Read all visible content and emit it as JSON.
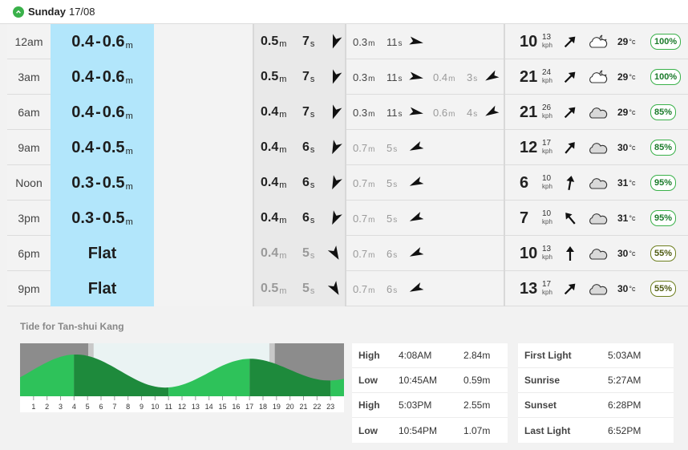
{
  "day": {
    "label": "Sunday",
    "date": "17/08"
  },
  "rows": [
    {
      "time": "12am",
      "surf_min": "0.4",
      "surf_max": "0.6",
      "surf_unit": "m",
      "flat": false,
      "swell_h": "0.5",
      "swell_p": "7",
      "swell_dir": 200,
      "swell_dim": false,
      "sec1_h": "0.3",
      "sec1_p": "11",
      "sec1_dir": 100,
      "sec1_dim": false,
      "sec2_h": "",
      "sec2_p": "",
      "sec2_dir": null,
      "wind": "10",
      "gust": "13",
      "wind_unit": "kph",
      "wind_dir": 225,
      "weather": "night-cloud",
      "temp": "29",
      "temp_unit": "°c",
      "prob": "100%",
      "prob_style": "green"
    },
    {
      "time": "3am",
      "surf_min": "0.4",
      "surf_max": "0.6",
      "surf_unit": "m",
      "flat": false,
      "swell_h": "0.5",
      "swell_p": "7",
      "swell_dir": 200,
      "swell_dim": false,
      "sec1_h": "0.3",
      "sec1_p": "11",
      "sec1_dir": 100,
      "sec1_dim": false,
      "sec2_h": "0.4",
      "sec2_p": "3",
      "sec2_dir": 240,
      "wind": "21",
      "gust": "24",
      "wind_unit": "kph",
      "wind_dir": 225,
      "weather": "night-cloud",
      "temp": "29",
      "temp_unit": "°c",
      "prob": "100%",
      "prob_style": "green"
    },
    {
      "time": "6am",
      "surf_min": "0.4",
      "surf_max": "0.6",
      "surf_unit": "m",
      "flat": false,
      "swell_h": "0.4",
      "swell_p": "7",
      "swell_dir": 200,
      "swell_dim": false,
      "sec1_h": "0.3",
      "sec1_p": "11",
      "sec1_dir": 100,
      "sec1_dim": false,
      "sec2_h": "0.6",
      "sec2_p": "4",
      "sec2_dir": 240,
      "wind": "21",
      "gust": "26",
      "wind_unit": "kph",
      "wind_dir": 225,
      "weather": "cloud",
      "temp": "29",
      "temp_unit": "°c",
      "prob": "85%",
      "prob_style": "green"
    },
    {
      "time": "9am",
      "surf_min": "0.4",
      "surf_max": "0.5",
      "surf_unit": "m",
      "flat": false,
      "swell_h": "0.4",
      "swell_p": "6",
      "swell_dir": 205,
      "swell_dim": false,
      "sec1_h": "0.7",
      "sec1_p": "5",
      "sec1_dir": 245,
      "sec1_dim": true,
      "sec2_h": "",
      "sec2_p": "",
      "sec2_dir": null,
      "wind": "12",
      "gust": "17",
      "wind_unit": "kph",
      "wind_dir": 220,
      "weather": "cloud",
      "temp": "30",
      "temp_unit": "°c",
      "prob": "85%",
      "prob_style": "green"
    },
    {
      "time": "Noon",
      "surf_min": "0.3",
      "surf_max": "0.5",
      "surf_unit": "m",
      "flat": false,
      "swell_h": "0.4",
      "swell_p": "6",
      "swell_dir": 205,
      "swell_dim": false,
      "sec1_h": "0.7",
      "sec1_p": "5",
      "sec1_dir": 245,
      "sec1_dim": true,
      "sec2_h": "",
      "sec2_p": "",
      "sec2_dir": null,
      "wind": "6",
      "gust": "10",
      "wind_unit": "kph",
      "wind_dir": 190,
      "weather": "cloud",
      "temp": "31",
      "temp_unit": "°c",
      "prob": "95%",
      "prob_style": "green"
    },
    {
      "time": "3pm",
      "surf_min": "0.3",
      "surf_max": "0.5",
      "surf_unit": "m",
      "flat": false,
      "swell_h": "0.4",
      "swell_p": "6",
      "swell_dir": 205,
      "swell_dim": false,
      "sec1_h": "0.7",
      "sec1_p": "5",
      "sec1_dir": 245,
      "sec1_dim": true,
      "sec2_h": "",
      "sec2_p": "",
      "sec2_dir": null,
      "wind": "7",
      "gust": "10",
      "wind_unit": "kph",
      "wind_dir": 140,
      "weather": "cloud",
      "temp": "31",
      "temp_unit": "°c",
      "prob": "95%",
      "prob_style": "green"
    },
    {
      "time": "6pm",
      "surf_min": "",
      "surf_max": "",
      "surf_unit": "",
      "flat": true,
      "flat_label": "Flat",
      "swell_h": "0.4",
      "swell_p": "5",
      "swell_dir": 150,
      "swell_dim": true,
      "sec1_h": "0.7",
      "sec1_p": "6",
      "sec1_dir": 245,
      "sec1_dim": true,
      "sec2_h": "",
      "sec2_p": "",
      "sec2_dir": null,
      "wind": "10",
      "gust": "13",
      "wind_unit": "kph",
      "wind_dir": 180,
      "weather": "cloud",
      "temp": "30",
      "temp_unit": "°c",
      "prob": "55%",
      "prob_style": "olive"
    },
    {
      "time": "9pm",
      "surf_min": "",
      "surf_max": "",
      "surf_unit": "",
      "flat": true,
      "flat_label": "Flat",
      "swell_h": "0.5",
      "swell_p": "5",
      "swell_dir": 150,
      "swell_dim": true,
      "sec1_h": "0.7",
      "sec1_p": "6",
      "sec1_dir": 245,
      "sec1_dim": true,
      "sec2_h": "",
      "sec2_p": "",
      "sec2_dir": null,
      "wind": "13",
      "gust": "17",
      "wind_unit": "kph",
      "wind_dir": 225,
      "weather": "cloud",
      "temp": "30",
      "temp_unit": "°c",
      "prob": "55%",
      "prob_style": "olive"
    }
  ],
  "tide": {
    "title": "Tide for Tan-shui Kang",
    "hours": [
      "1",
      "2",
      "3",
      "4",
      "5",
      "6",
      "7",
      "8",
      "9",
      "10",
      "11",
      "12",
      "13",
      "14",
      "15",
      "16",
      "17",
      "18",
      "19",
      "20",
      "21",
      "22",
      "23"
    ],
    "events": [
      {
        "type": "High",
        "time": "4:08AM",
        "height": "2.84m",
        "hour": 4.13,
        "value": 2.84
      },
      {
        "type": "Low",
        "time": "10:45AM",
        "height": "0.59m",
        "hour": 10.75,
        "value": 0.59
      },
      {
        "type": "High",
        "time": "5:03PM",
        "height": "2.55m",
        "hour": 17.05,
        "value": 2.55
      },
      {
        "type": "Low",
        "time": "10:54PM",
        "height": "1.07m",
        "hour": 22.9,
        "value": 1.07
      }
    ],
    "sun": [
      {
        "label": "First Light",
        "time": "5:03AM",
        "hour": 5.05
      },
      {
        "label": "Sunrise",
        "time": "5:27AM",
        "hour": 5.45
      },
      {
        "label": "Sunset",
        "time": "6:28PM",
        "hour": 18.47
      },
      {
        "label": "Last Light",
        "time": "6:52PM",
        "hour": 18.87
      }
    ],
    "colors": {
      "light": "#2ec25a",
      "dark": "#1e8a3c",
      "night": "#8c8c8c",
      "twilight": "#c8c8c8",
      "day": "#eaf3f3"
    }
  }
}
